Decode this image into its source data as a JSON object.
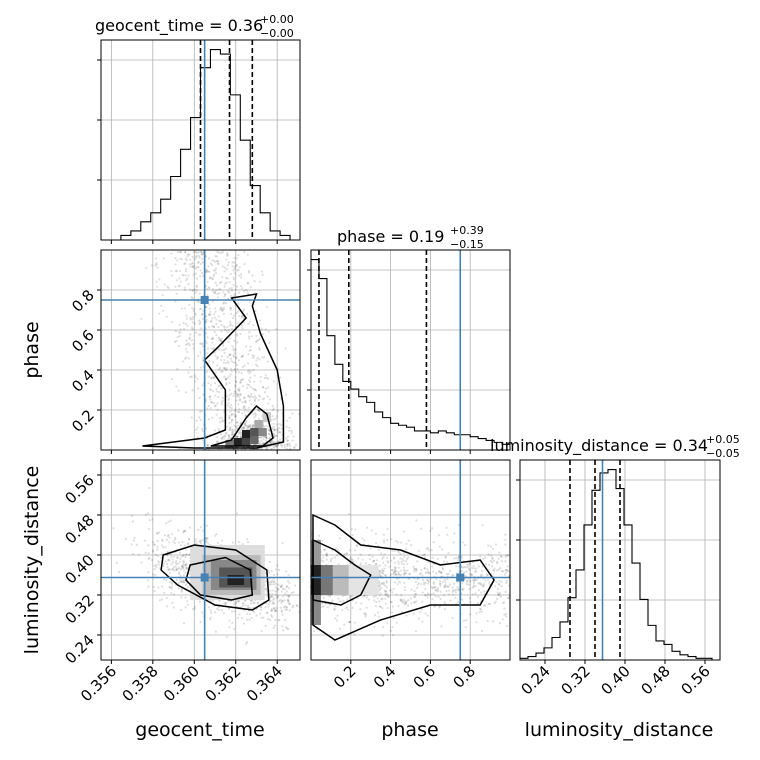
{
  "chart_data": {
    "type": "corner",
    "parameters": [
      "geocent_time",
      "phase",
      "luminosity_distance"
    ],
    "truth": {
      "geocent_time": 0.3605,
      "phase": 0.75,
      "luminosity_distance": 0.355
    },
    "titles": [
      {
        "param": "geocent_time",
        "text": "geocent_time = 0.36",
        "sup": "+0.00",
        "sub": "−0.00"
      },
      {
        "param": "phase",
        "text": "phase = 0.19",
        "sup": "+0.39",
        "sub": "−0.15"
      },
      {
        "param": "luminosity_distance",
        "text": "luminosity_distance = 0.34",
        "sup": "+0.05",
        "sub": "−0.05"
      }
    ],
    "axis_labels": {
      "geocent_time": "geocent_time",
      "phase": "phase",
      "luminosity_distance": "luminosity_distance"
    },
    "ranges": {
      "geocent_time": [
        0.3555,
        0.3651
      ],
      "phase": [
        0.0,
        1.0
      ],
      "luminosity_distance": [
        0.19,
        0.59
      ]
    },
    "ticks": {
      "geocent_time": [
        "0.356",
        "0.358",
        "0.360",
        "0.362",
        "0.364"
      ],
      "phase": [
        "0.2",
        "0.4",
        "0.6",
        "0.8"
      ],
      "luminosity_distance": [
        "0.24",
        "0.32",
        "0.40",
        "0.48",
        "0.56"
      ]
    },
    "quantiles": {
      "geocent_time": [
        0.3603,
        0.3617,
        0.3628
      ],
      "phase": [
        0.04,
        0.19,
        0.58
      ],
      "luminosity_distance": [
        0.29,
        0.34,
        0.39
      ]
    },
    "histograms": {
      "geocent_time": {
        "edges_range": [
          0.3555,
          0.3651
        ],
        "bins": 20,
        "counts": [
          0,
          0,
          1,
          2,
          4,
          6,
          9,
          14,
          20,
          27,
          38,
          42,
          41,
          32,
          22,
          12,
          6,
          2,
          1,
          0
        ]
      },
      "phase": {
        "edges_range": [
          0.0,
          1.0
        ],
        "bins": 25,
        "counts": [
          100,
          90,
          60,
          45,
          36,
          32,
          28,
          25,
          20,
          17,
          14,
          13,
          12,
          10,
          10,
          9,
          10,
          9,
          8,
          8,
          7,
          6,
          5,
          4,
          3
        ]
      },
      "luminosity_distance": {
        "edges_range": [
          0.19,
          0.59
        ],
        "bins": 25,
        "counts": [
          1,
          2,
          4,
          7,
          13,
          22,
          36,
          52,
          78,
          98,
          108,
          110,
          99,
          78,
          56,
          35,
          20,
          11,
          9,
          5,
          3,
          2,
          1,
          1,
          0
        ]
      }
    },
    "grid": true
  }
}
